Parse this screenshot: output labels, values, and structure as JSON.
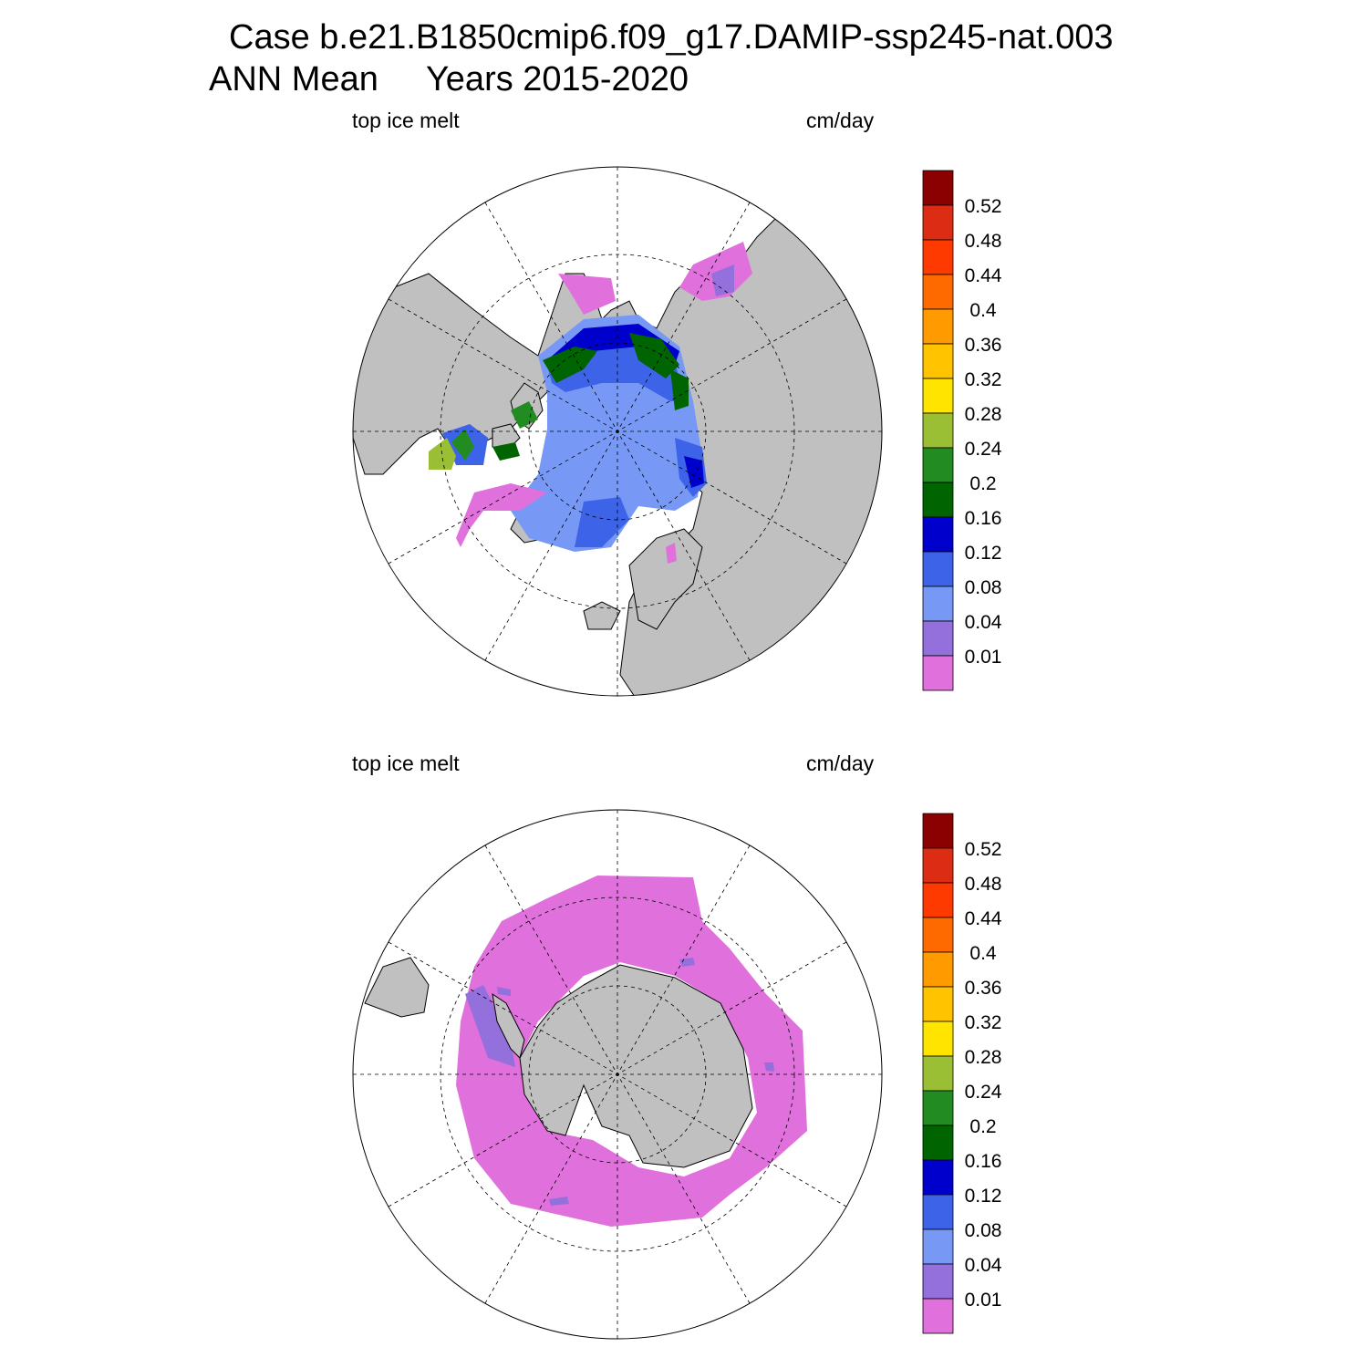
{
  "title": {
    "line1": "Case b.e21.B1850cmip6.f09_g17.DAMIP-ssp245-nat.003",
    "line2": "ANN Mean     Years 2015-2020"
  },
  "panels": [
    {
      "id": "north",
      "hemisphere": "Northern Hemisphere",
      "variable_label": "top ice melt",
      "units_label": "cm/day"
    },
    {
      "id": "south",
      "hemisphere": "Southern Hemisphere",
      "variable_label": "top ice melt",
      "units_label": "cm/day"
    }
  ],
  "colorbar": {
    "labels": [
      "0.52",
      "0.48",
      "0.44",
      "0.4",
      "0.36",
      "0.32",
      "0.28",
      "0.24",
      "0.2",
      "0.16",
      "0.12",
      "0.08",
      "0.04",
      "0.01"
    ],
    "colors": [
      "#8b0000",
      "#dd2c14",
      "#ff3a00",
      "#ff6a00",
      "#ff9b00",
      "#ffc300",
      "#ffe400",
      "#9abe34",
      "#228b22",
      "#006400",
      "#0000cd",
      "#3d63e8",
      "#7799f5",
      "#9370db",
      "#e070dc"
    ]
  },
  "map_colors": {
    "land": "#c0c0c0",
    "ocean": "#ffffff",
    "coast": "#000000",
    "grid": "#000000"
  }
}
